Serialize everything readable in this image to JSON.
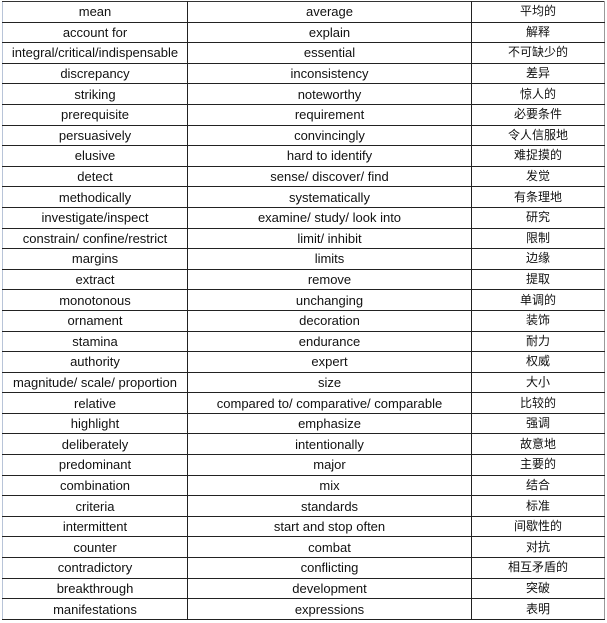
{
  "rows": [
    [
      "mean",
      "average",
      "平均的"
    ],
    [
      "account for",
      "explain",
      "解释"
    ],
    [
      "integral/critical/indispensable",
      "essential",
      "不可缺少的"
    ],
    [
      "discrepancy",
      "inconsistency",
      "差异"
    ],
    [
      "striking",
      "noteworthy",
      "惊人的"
    ],
    [
      "prerequisite",
      "requirement",
      "必要条件"
    ],
    [
      "persuasively",
      "convincingly",
      "令人信服地"
    ],
    [
      "elusive",
      "hard to identify",
      "难捉摸的"
    ],
    [
      "detect",
      "sense/ discover/ find",
      "发觉"
    ],
    [
      "methodically",
      "systematically",
      "有条理地"
    ],
    [
      "investigate/inspect",
      "examine/ study/ look into",
      "研究"
    ],
    [
      "constrain/ confine/restrict",
      "limit/ inhibit",
      "限制"
    ],
    [
      "margins",
      "limits",
      "边缘"
    ],
    [
      "extract",
      "remove",
      "提取"
    ],
    [
      "monotonous",
      "unchanging",
      "单调的"
    ],
    [
      "ornament",
      "decoration",
      "装饰"
    ],
    [
      "stamina",
      "endurance",
      "耐力"
    ],
    [
      "authority",
      "expert",
      "权威"
    ],
    [
      "magnitude/ scale/ proportion",
      "size",
      "大小"
    ],
    [
      "relative",
      "compared to/ comparative/ comparable",
      "比较的"
    ],
    [
      "highlight",
      "emphasize",
      "强调"
    ],
    [
      "deliberately",
      "intentionally",
      "故意地"
    ],
    [
      "predominant",
      "major",
      "主要的"
    ],
    [
      "combination",
      "mix",
      "结合"
    ],
    [
      "criteria",
      "standards",
      "标准"
    ],
    [
      "intermittent",
      "start and stop often",
      "间歇性的"
    ],
    [
      "counter",
      "combat",
      "对抗"
    ],
    [
      "contradictory",
      "conflicting",
      "相互矛盾的"
    ],
    [
      "breakthrough",
      "development",
      "突破"
    ],
    [
      "manifestations",
      "expressions",
      "表明"
    ]
  ]
}
